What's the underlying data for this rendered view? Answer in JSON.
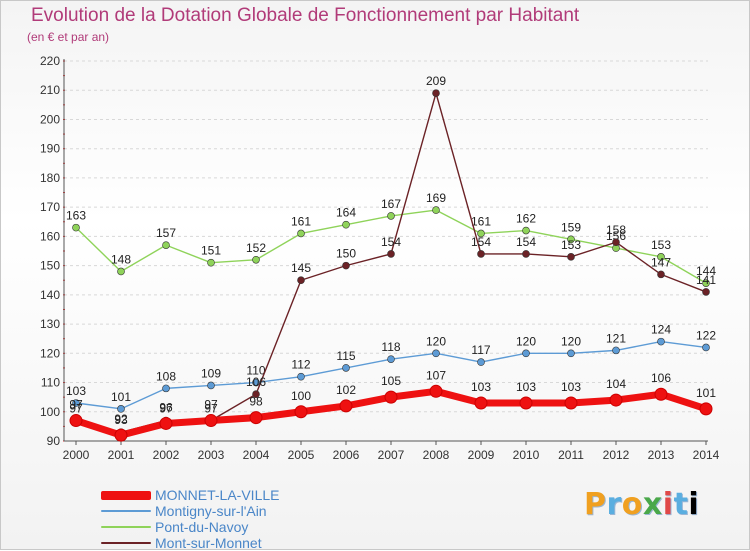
{
  "header": {
    "title": "Evolution de la Dotation Globale de Fonctionnement par Habitant",
    "subtitle": "(en € et par an)"
  },
  "logo": {
    "letters": [
      "P",
      "r",
      "o",
      "x",
      "i",
      "t",
      "i"
    ]
  },
  "chart_data": {
    "type": "line",
    "title": "Evolution de la Dotation Globale de Fonctionnement par Habitant",
    "subtitle": "(en € et par an)",
    "x": [
      "2000",
      "2001",
      "2002",
      "2003",
      "2004",
      "2005",
      "2006",
      "2007",
      "2008",
      "2009",
      "2010",
      "2011",
      "2012",
      "2013",
      "2014"
    ],
    "ylim": [
      90,
      220
    ],
    "yticks": [
      "90",
      "100",
      "110",
      "120",
      "130",
      "140",
      "150",
      "160",
      "170",
      "180",
      "190",
      "200",
      "210",
      "220"
    ],
    "grid": "horizontal dashed",
    "legend": "bottom-left",
    "series": [
      {
        "name": "Pont-du-Navoy",
        "color": "#8fd35a",
        "values": [
          163,
          148,
          157,
          151,
          152,
          161,
          164,
          167,
          169,
          161,
          162,
          159,
          156,
          153,
          144
        ],
        "labels": [
          "163",
          "148",
          "157",
          "151",
          "152",
          "161",
          "164",
          "167",
          "169",
          "161",
          "162",
          "159",
          "156",
          "153",
          "144"
        ]
      },
      {
        "name": "Montigny-sur-l'Ain",
        "color": "#5d9bd5",
        "values": [
          103,
          101,
          108,
          109,
          110,
          112,
          115,
          118,
          120,
          117,
          120,
          120,
          121,
          124,
          122
        ],
        "labels": [
          "103",
          "101",
          "108",
          "109",
          "110",
          "112",
          "115",
          "118",
          "120",
          "117",
          "120",
          "120",
          "121",
          "124",
          "122"
        ]
      },
      {
        "name": "Mont-sur-Monnet",
        "color": "#6b2226",
        "values": [
          97,
          93,
          97,
          97,
          106,
          145,
          150,
          154,
          209,
          154,
          154,
          153,
          158,
          147,
          141
        ],
        "labels": [
          "97",
          "93",
          "97",
          "97",
          "106",
          "145",
          "150",
          "154",
          "209",
          "154",
          "154",
          "153",
          "158",
          "147",
          "141"
        ]
      },
      {
        "name": "MONNET-LA-VILLE",
        "color": "#ee1111",
        "values": [
          97,
          92,
          96,
          97,
          98,
          100,
          102,
          105,
          107,
          103,
          103,
          103,
          104,
          106,
          101
        ],
        "labels": [
          "97",
          "92",
          "96",
          "97",
          "98",
          "100",
          "102",
          "105",
          "107",
          "103",
          "103",
          "103",
          "104",
          "106",
          "101"
        ]
      }
    ],
    "legend_order": [
      "MONNET-LA-VILLE",
      "Montigny-sur-l'Ain",
      "Pont-du-Navoy",
      "Mont-sur-Monnet"
    ]
  }
}
